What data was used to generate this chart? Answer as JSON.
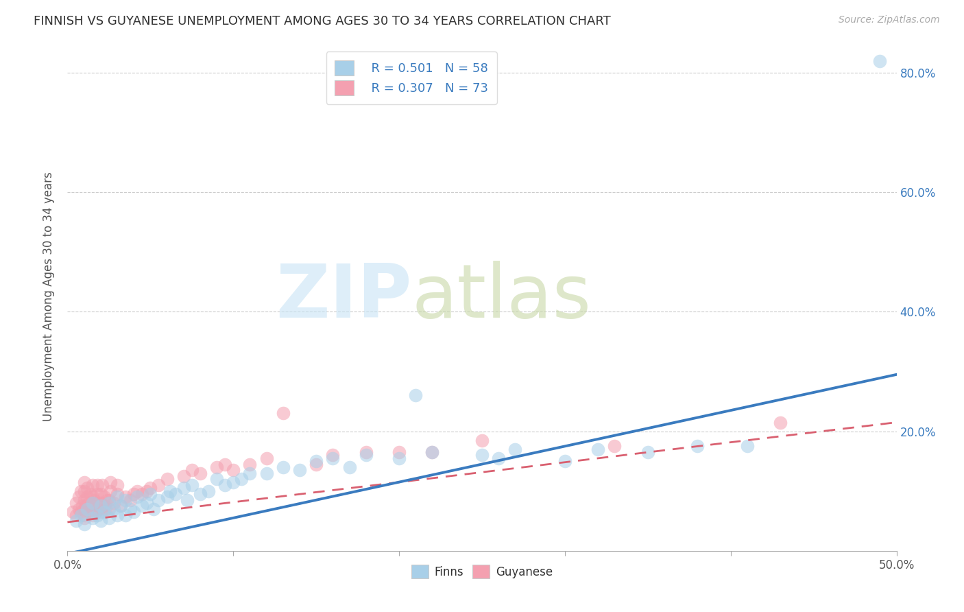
{
  "title": "FINNISH VS GUYANESE UNEMPLOYMENT AMONG AGES 30 TO 34 YEARS CORRELATION CHART",
  "source": "Source: ZipAtlas.com",
  "ylabel": "Unemployment Among Ages 30 to 34 years",
  "xlim": [
    0.0,
    0.5
  ],
  "ylim": [
    0.0,
    0.85
  ],
  "xticks": [
    0.0,
    0.1,
    0.2,
    0.3,
    0.4,
    0.5
  ],
  "yticks": [
    0.0,
    0.2,
    0.4,
    0.6,
    0.8
  ],
  "finn_color": "#a8cfe8",
  "guyanese_color": "#f4a0b0",
  "finn_line_color": "#3a7bbf",
  "guyanese_line_color": "#d96070",
  "finn_r": "0.501",
  "finn_n": "58",
  "guyanese_r": "0.307",
  "guyanese_n": "73",
  "finn_trend_x0": 0.0,
  "finn_trend_y0": -0.005,
  "finn_trend_x1": 0.5,
  "finn_trend_y1": 0.295,
  "guy_trend_x0": 0.0,
  "guy_trend_y0": 0.048,
  "guy_trend_x1": 0.5,
  "guy_trend_y1": 0.215,
  "finn_scatter_x": [
    0.005,
    0.008,
    0.01,
    0.012,
    0.015,
    0.015,
    0.018,
    0.02,
    0.02,
    0.022,
    0.025,
    0.025,
    0.028,
    0.03,
    0.03,
    0.032,
    0.035,
    0.035,
    0.038,
    0.04,
    0.042,
    0.045,
    0.048,
    0.05,
    0.052,
    0.055,
    0.06,
    0.062,
    0.065,
    0.07,
    0.072,
    0.075,
    0.08,
    0.085,
    0.09,
    0.095,
    0.1,
    0.105,
    0.11,
    0.12,
    0.13,
    0.14,
    0.15,
    0.16,
    0.17,
    0.18,
    0.2,
    0.21,
    0.22,
    0.25,
    0.26,
    0.27,
    0.3,
    0.32,
    0.35,
    0.38,
    0.41,
    0.49
  ],
  "finn_scatter_y": [
    0.05,
    0.06,
    0.045,
    0.07,
    0.055,
    0.08,
    0.06,
    0.05,
    0.075,
    0.065,
    0.055,
    0.08,
    0.07,
    0.06,
    0.09,
    0.075,
    0.06,
    0.085,
    0.07,
    0.065,
    0.09,
    0.075,
    0.08,
    0.095,
    0.07,
    0.085,
    0.09,
    0.1,
    0.095,
    0.105,
    0.085,
    0.11,
    0.095,
    0.1,
    0.12,
    0.11,
    0.115,
    0.12,
    0.13,
    0.13,
    0.14,
    0.135,
    0.15,
    0.155,
    0.14,
    0.16,
    0.155,
    0.26,
    0.165,
    0.16,
    0.155,
    0.17,
    0.15,
    0.17,
    0.165,
    0.175,
    0.175,
    0.82
  ],
  "guy_scatter_x": [
    0.003,
    0.005,
    0.005,
    0.007,
    0.007,
    0.008,
    0.008,
    0.009,
    0.01,
    0.01,
    0.01,
    0.01,
    0.01,
    0.01,
    0.011,
    0.012,
    0.012,
    0.013,
    0.013,
    0.014,
    0.015,
    0.015,
    0.015,
    0.015,
    0.016,
    0.016,
    0.017,
    0.017,
    0.018,
    0.018,
    0.019,
    0.02,
    0.02,
    0.02,
    0.021,
    0.022,
    0.022,
    0.023,
    0.024,
    0.025,
    0.025,
    0.026,
    0.026,
    0.028,
    0.03,
    0.03,
    0.032,
    0.035,
    0.038,
    0.04,
    0.042,
    0.045,
    0.048,
    0.05,
    0.055,
    0.06,
    0.07,
    0.075,
    0.08,
    0.09,
    0.095,
    0.1,
    0.11,
    0.12,
    0.13,
    0.15,
    0.16,
    0.18,
    0.2,
    0.22,
    0.25,
    0.33,
    0.43
  ],
  "guy_scatter_y": [
    0.065,
    0.06,
    0.08,
    0.07,
    0.09,
    0.065,
    0.1,
    0.075,
    0.055,
    0.07,
    0.085,
    0.1,
    0.115,
    0.06,
    0.075,
    0.09,
    0.105,
    0.065,
    0.08,
    0.095,
    0.06,
    0.075,
    0.09,
    0.11,
    0.07,
    0.085,
    0.065,
    0.08,
    0.095,
    0.11,
    0.07,
    0.065,
    0.08,
    0.095,
    0.11,
    0.075,
    0.09,
    0.07,
    0.085,
    0.07,
    0.085,
    0.1,
    0.115,
    0.08,
    0.095,
    0.11,
    0.075,
    0.09,
    0.085,
    0.095,
    0.1,
    0.095,
    0.1,
    0.105,
    0.11,
    0.12,
    0.125,
    0.135,
    0.13,
    0.14,
    0.145,
    0.135,
    0.145,
    0.155,
    0.23,
    0.145,
    0.16,
    0.165,
    0.165,
    0.165,
    0.185,
    0.175,
    0.215
  ]
}
